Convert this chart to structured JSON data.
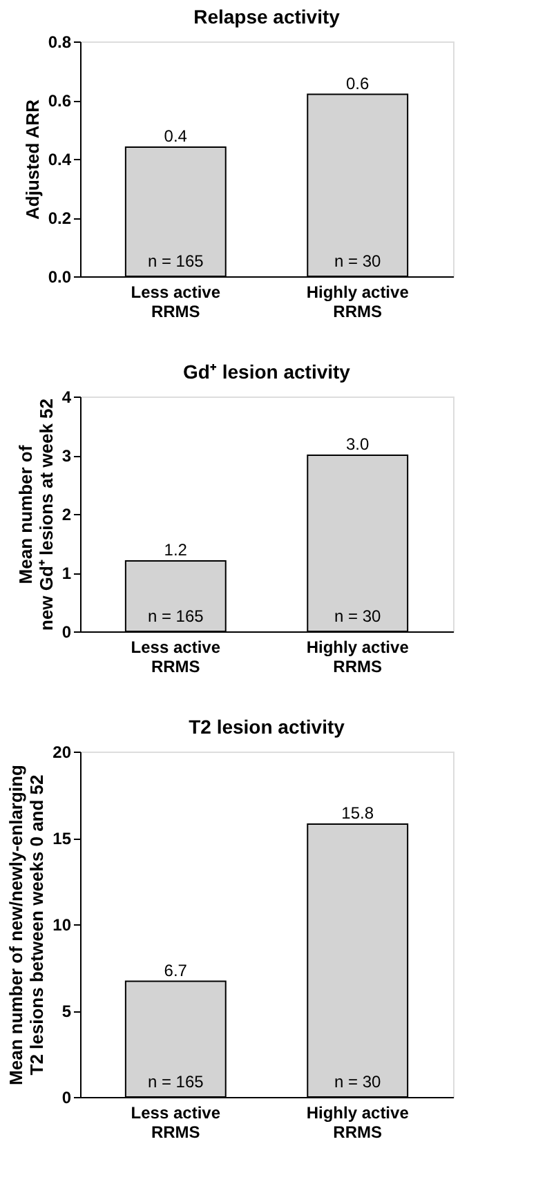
{
  "chart_data": [
    {
      "type": "bar",
      "title": "Relapse activity",
      "ylabel": "Adjusted ARR",
      "categories": [
        "Less active\nRRMS",
        "Highly active\nRRMS"
      ],
      "values": [
        0.44,
        0.62
      ],
      "value_labels": [
        "0.4",
        "0.6"
      ],
      "color": "#d3d3d3",
      "ylim": [
        0,
        0.8
      ],
      "yticks": [
        {
          "value": 0,
          "label": "0.0"
        },
        {
          "value": 0.2,
          "label": "0.2"
        },
        {
          "value": 0.4,
          "label": "0.4"
        },
        {
          "value": 0.6,
          "label": "0.6"
        },
        {
          "value": 0.8,
          "label": "0.8"
        }
      ],
      "grid": false,
      "annotations": [
        "n = 165",
        "n = 30"
      ]
    },
    {
      "type": "bar",
      "title": "Gd⁺ lesion activity",
      "ylabel": "Mean number of\nnew Gd⁺ lesions at week 52",
      "categories": [
        "Less active\nRRMS",
        "Highly active\nRRMS"
      ],
      "values": [
        1.2,
        3.0
      ],
      "value_labels": [
        "1.2",
        "3.0"
      ],
      "color": "#d3d3d3",
      "ylim": [
        0,
        4
      ],
      "yticks": [
        0,
        1,
        2,
        3,
        4
      ],
      "grid": false,
      "annotations": [
        "n = 165",
        "n = 30"
      ]
    },
    {
      "type": "bar",
      "title": "T2 lesion activity",
      "ylabel": "Mean number of new/newly-enlarging\nT2 lesions between weeks 0 and 52",
      "categories": [
        "Less active\nRRMS",
        "Highly active\nRRMS"
      ],
      "values": [
        6.7,
        15.8
      ],
      "value_labels": [
        "6.7",
        "15.8"
      ],
      "color": "#d3d3d3",
      "ylim": [
        0,
        20
      ],
      "yticks": [
        0,
        5,
        10,
        15,
        20
      ],
      "grid": false,
      "annotations": [
        "n = 165",
        "n = 30"
      ]
    }
  ]
}
